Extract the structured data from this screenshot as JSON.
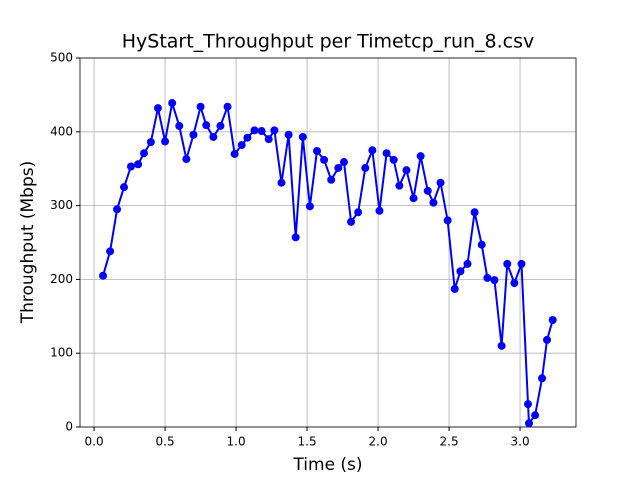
{
  "chart_data": {
    "type": "line",
    "title": "HyStart_Throughput per Timetcp_run_8.csv",
    "x_label": "Time (s)",
    "y_label": "Throughput (Mbps)",
    "series": [
      {
        "name": "Throughput",
        "color": "#0000ff",
        "x": [
          0.063,
          0.113,
          0.162,
          0.211,
          0.26,
          0.31,
          0.352,
          0.4,
          0.45,
          0.5,
          0.55,
          0.6,
          0.65,
          0.7,
          0.75,
          0.79,
          0.84,
          0.89,
          0.94,
          0.99,
          1.04,
          1.08,
          1.13,
          1.18,
          1.23,
          1.27,
          1.32,
          1.37,
          1.42,
          1.47,
          1.52,
          1.57,
          1.62,
          1.67,
          1.72,
          1.76,
          1.81,
          1.86,
          1.91,
          1.96,
          2.01,
          2.06,
          2.11,
          2.15,
          2.2,
          2.25,
          2.3,
          2.35,
          2.39,
          2.44,
          2.49,
          2.54,
          2.58,
          2.63,
          2.68,
          2.73,
          2.77,
          2.82,
          2.87,
          2.91,
          2.96,
          3.01,
          3.056,
          3.063,
          3.106,
          3.155,
          3.19,
          3.23
        ],
        "values": [
          205,
          238,
          295,
          325,
          353,
          356,
          371,
          386,
          432,
          387,
          439,
          408,
          363,
          396,
          434,
          409,
          393,
          408,
          434,
          370,
          382,
          392,
          402,
          401,
          390,
          402,
          331,
          396,
          257,
          393,
          299,
          374,
          362,
          335,
          351,
          359,
          278,
          291,
          351,
          375,
          293,
          371,
          362,
          327,
          348,
          310,
          367,
          320,
          304,
          331,
          280,
          187,
          211,
          221,
          291,
          247,
          202,
          199,
          110,
          221,
          195,
          221,
          31,
          5,
          16,
          66,
          118,
          145
        ]
      }
    ],
    "xlim": [
      -0.099,
      3.394
    ],
    "ylim": [
      0,
      500
    ],
    "xticks": [
      {
        "value": 0,
        "label": "0.0"
      },
      {
        "value": 0.5,
        "label": "0.5"
      },
      {
        "value": 1,
        "label": "1.0"
      },
      {
        "value": 1.5,
        "label": "1.5"
      },
      {
        "value": 2,
        "label": "2.0"
      },
      {
        "value": 2.5,
        "label": "2.5"
      },
      {
        "value": 3,
        "label": "3.0"
      }
    ],
    "yticks": [
      0,
      100,
      200,
      300,
      400,
      500
    ],
    "grid": true
  }
}
